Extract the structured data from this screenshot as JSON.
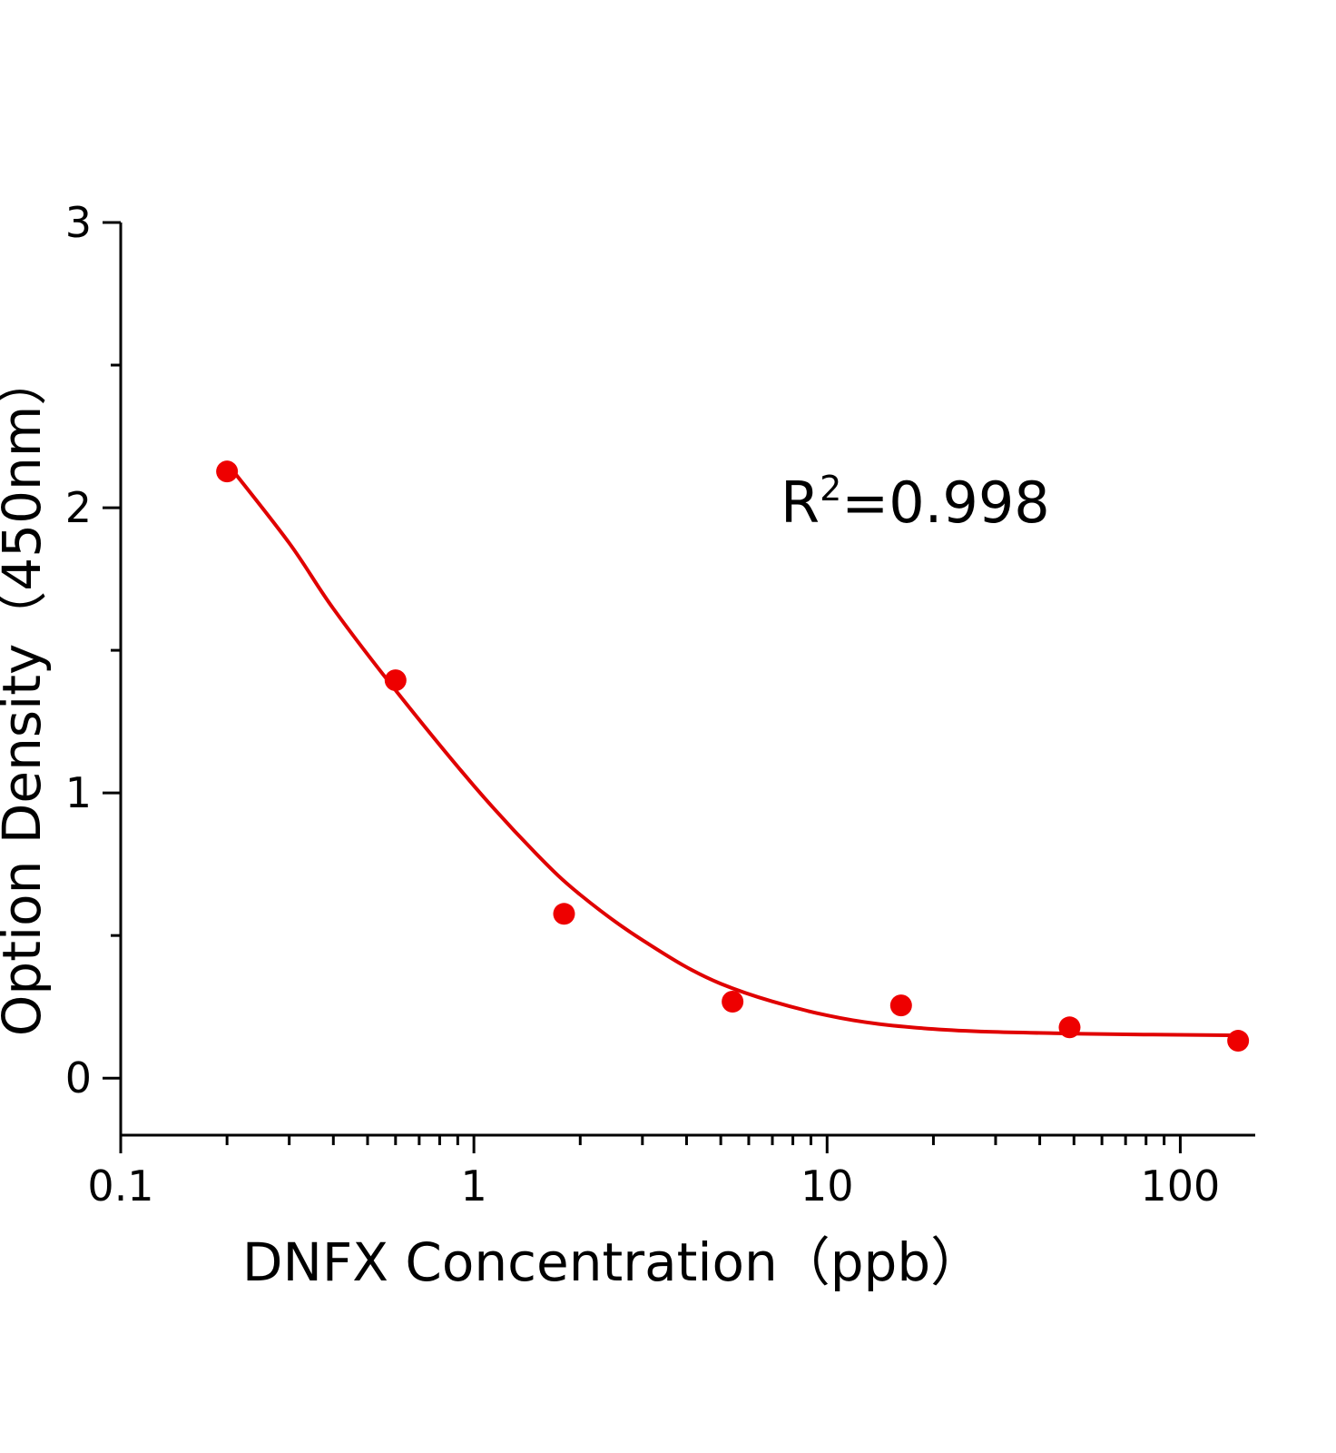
{
  "chart_data": {
    "type": "scatter",
    "xlabel": "DNFX Concentration（ppb）",
    "ylabel": "Option Density（450nm）",
    "annotation": {
      "base": "R",
      "sup": "2",
      "rest": "=0.998"
    },
    "xscale": "log",
    "xlim": [
      0.1,
      163
    ],
    "ylim": [
      -0.2,
      3
    ],
    "xticks": [
      0.1,
      1,
      10,
      100
    ],
    "yticks": [
      0,
      1,
      2,
      3
    ],
    "xminorticks": [
      0.2,
      0.3,
      0.4,
      0.5,
      0.6,
      0.7,
      0.8,
      0.9,
      2,
      3,
      4,
      5,
      6,
      7,
      8,
      9,
      20,
      30,
      40,
      50,
      60,
      70,
      80,
      90
    ],
    "yminorticks": [
      0.5,
      1.5,
      2.5
    ],
    "series": [
      {
        "type": "scatter",
        "color": "#ee0000",
        "x": [
          0.2,
          0.6,
          1.8,
          5.4,
          16.2,
          48.6,
          145.8
        ],
        "values": [
          2.127,
          1.395,
          0.576,
          0.268,
          0.255,
          0.178,
          0.131
        ]
      },
      {
        "type": "line",
        "color": "#e00000",
        "x": [
          0.2,
          0.3,
          0.4,
          0.6,
          1,
          1.5,
          2,
          3,
          5,
          10,
          20,
          50,
          150
        ],
        "values": [
          2.156,
          1.876,
          1.646,
          1.36,
          1.025,
          0.787,
          0.643,
          0.484,
          0.331,
          0.22,
          0.172,
          0.156,
          0.15
        ]
      }
    ]
  }
}
